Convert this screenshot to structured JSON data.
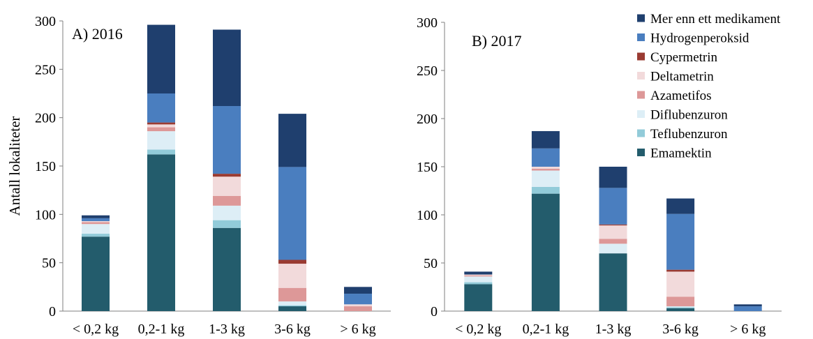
{
  "chart_data": [
    {
      "type": "bar",
      "stacked": true,
      "panel_label": "A) 2016",
      "ylabel": "Antall lokaliteter",
      "xlabel": "",
      "ylim": [
        0,
        300
      ],
      "y_ticks": [
        "0",
        "50",
        "100",
        "150",
        "200",
        "250",
        "300"
      ],
      "categories": [
        "< 0,2 kg",
        "0,2-1 kg",
        "1-3 kg",
        "3-6 kg",
        "> 6 kg"
      ],
      "grid": false,
      "series": [
        {
          "name": "Emamektin",
          "values": [
            77,
            162,
            86,
            5,
            0
          ]
        },
        {
          "name": "Teflubenzuron",
          "values": [
            3,
            5,
            8,
            1,
            0
          ]
        },
        {
          "name": "Diflubenzuron",
          "values": [
            10,
            19,
            15,
            4,
            0
          ]
        },
        {
          "name": "Azametifos",
          "values": [
            2,
            4,
            10,
            14,
            5
          ]
        },
        {
          "name": "Deltametrin",
          "values": [
            1,
            3,
            20,
            25,
            2
          ]
        },
        {
          "name": "Cypermetrin",
          "values": [
            0,
            2,
            3,
            4,
            0
          ]
        },
        {
          "name": "Hydrogenperoksid",
          "values": [
            3,
            30,
            70,
            96,
            11
          ]
        },
        {
          "name": "Mer enn ett medikament",
          "values": [
            3,
            71,
            79,
            55,
            7
          ]
        }
      ]
    },
    {
      "type": "bar",
      "stacked": true,
      "panel_label": "B) 2017",
      "ylabel": "",
      "xlabel": "",
      "ylim": [
        0,
        300
      ],
      "y_ticks": [
        "0",
        "50",
        "100",
        "150",
        "200",
        "250",
        "300"
      ],
      "categories": [
        "< 0,2 kg",
        "0,2-1 kg",
        "1-3 kg",
        "3-6 kg",
        "> 6 kg"
      ],
      "grid": false,
      "legend_position": "top-right",
      "series": [
        {
          "name": "Emamektin",
          "values": [
            28,
            122,
            60,
            3,
            0
          ]
        },
        {
          "name": "Teflubenzuron",
          "values": [
            2,
            7,
            0,
            1,
            0
          ]
        },
        {
          "name": "Diflubenzuron",
          "values": [
            6,
            17,
            10,
            1,
            0
          ]
        },
        {
          "name": "Azametifos",
          "values": [
            1,
            2,
            5,
            10,
            0
          ]
        },
        {
          "name": "Deltametrin",
          "values": [
            1,
            2,
            14,
            26,
            0
          ]
        },
        {
          "name": "Cypermetrin",
          "values": [
            0,
            0,
            1,
            2,
            0
          ]
        },
        {
          "name": "Hydrogenperoksid",
          "values": [
            0,
            19,
            38,
            58,
            5
          ]
        },
        {
          "name": "Mer enn ett medikament",
          "values": [
            3,
            18,
            22,
            16,
            2
          ]
        }
      ]
    }
  ],
  "legend": {
    "items": [
      {
        "name": "Mer enn ett medikament",
        "color": "#1f3f6e"
      },
      {
        "name": "Hydrogenperoksid",
        "color": "#4a7ebf"
      },
      {
        "name": "Cypermetrin",
        "color": "#9a3b32"
      },
      {
        "name": "Deltametrin",
        "color": "#f2dadb"
      },
      {
        "name": "Azametifos",
        "color": "#dd9898"
      },
      {
        "name": "Diflubenzuron",
        "color": "#ddeef6"
      },
      {
        "name": "Teflubenzuron",
        "color": "#92cbd9"
      },
      {
        "name": "Emamektin",
        "color": "#235c6c"
      }
    ]
  }
}
